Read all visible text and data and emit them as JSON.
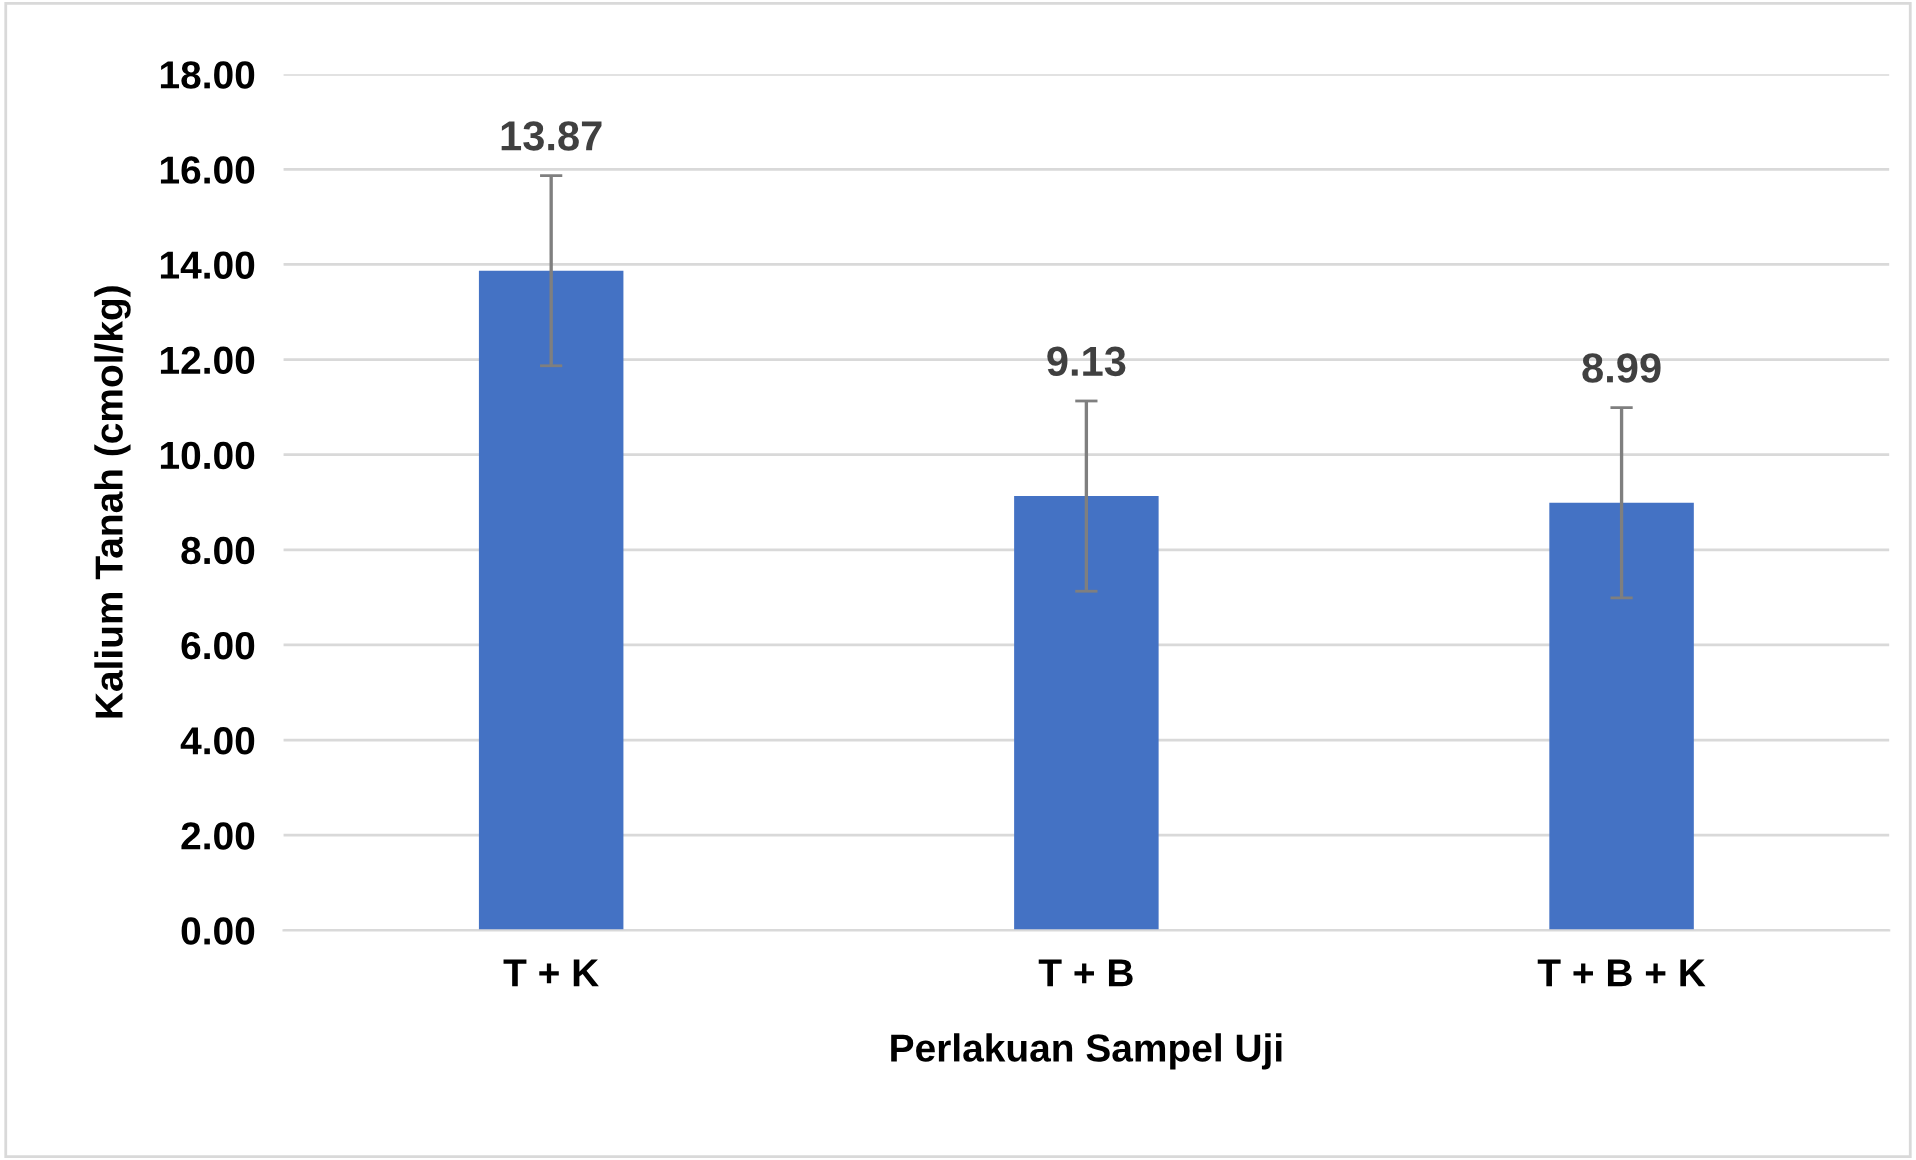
{
  "chart_data": {
    "type": "bar",
    "xlabel": "Perlakuan Sampel Uji",
    "ylabel": "Kalium Tanah (cmol/kg)",
    "categories": [
      "T + K",
      "T + B",
      "T + B + K"
    ],
    "values": [
      13.87,
      9.13,
      8.99
    ],
    "errors": [
      2,
      2,
      2
    ],
    "color": "#4472c4",
    "data_labels": true,
    "ylim": [
      0,
      18
    ],
    "yticks": [
      {
        "value": 0,
        "label": "0.00"
      },
      {
        "value": 2,
        "label": "2.00"
      },
      {
        "value": 4,
        "label": "4.00"
      },
      {
        "value": 6,
        "label": "6.00"
      },
      {
        "value": 8,
        "label": "8.00"
      },
      {
        "value": 10,
        "label": "10.00"
      },
      {
        "value": 12,
        "label": "12.00"
      },
      {
        "value": 14,
        "label": "14.00"
      },
      {
        "value": 16,
        "label": "16.00"
      },
      {
        "value": 18,
        "label": "18.00"
      }
    ],
    "grid": "y"
  }
}
